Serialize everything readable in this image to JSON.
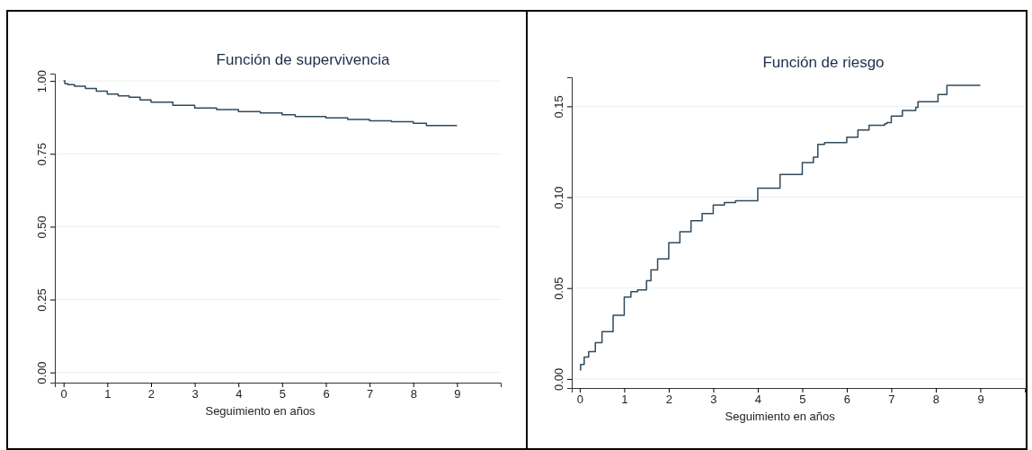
{
  "chart_data": [
    {
      "type": "step",
      "title": "Función de supervivencia",
      "xlabel": "Seguimiento en años",
      "xlim": [
        -0.2,
        10
      ],
      "xticks": [
        0,
        1,
        2,
        3,
        4,
        5,
        6,
        7,
        8,
        9
      ],
      "ylim": [
        -0.035,
        1.025
      ],
      "yticks": [
        {
          "value": 0,
          "label": "0.00"
        },
        {
          "value": 0.25,
          "label": "0.25"
        },
        {
          "value": 0.5,
          "label": "0.50"
        },
        {
          "value": 0.75,
          "label": "0.75"
        },
        {
          "value": 1,
          "label": "1.00"
        }
      ],
      "grid": "y",
      "series": [
        {
          "color": "#2f4a5c",
          "x": [
            0,
            0.03,
            0.1,
            0.25,
            0.5,
            0.75,
            1,
            1.25,
            1.5,
            1.75,
            2,
            2.5,
            3,
            3.5,
            4,
            4.5,
            5,
            5.3,
            6,
            6.5,
            7,
            7.5,
            8,
            8.3,
            9
          ],
          "values": [
            1.0,
            0.99,
            0.987,
            0.982,
            0.974,
            0.965,
            0.955,
            0.949,
            0.944,
            0.935,
            0.927,
            0.916,
            0.907,
            0.902,
            0.895,
            0.89,
            0.884,
            0.878,
            0.873,
            0.868,
            0.863,
            0.86,
            0.855,
            0.847,
            0.847
          ]
        }
      ]
    },
    {
      "type": "step",
      "title": "Función de riesgo",
      "xlabel": "Seguimiento en años",
      "xlim": [
        -0.18,
        10
      ],
      "xticks": [
        0,
        1,
        2,
        3,
        4,
        5,
        6,
        7,
        8,
        9
      ],
      "ylim": [
        -0.005,
        0.166
      ],
      "yticks": [
        {
          "value": 0,
          "label": "0.00"
        },
        {
          "value": 0.05,
          "label": "0.05"
        },
        {
          "value": 0.1,
          "label": "0.10"
        },
        {
          "value": 0.15,
          "label": "0.15"
        }
      ],
      "grid": "y",
      "series": [
        {
          "color": "#2f4a5c",
          "x": [
            0,
            0.02,
            0.1,
            0.2,
            0.35,
            0.5,
            0.75,
            1,
            1.15,
            1.3,
            1.5,
            1.6,
            1.75,
            2,
            2.25,
            2.5,
            2.75,
            3,
            3.25,
            3.5,
            4,
            4.5,
            5,
            5.25,
            5.35,
            5.5,
            6,
            6.25,
            6.5,
            6.85,
            6.9,
            7,
            7.25,
            7.55,
            7.6,
            8.05,
            8.25,
            9
          ],
          "values": [
            0.005,
            0.008,
            0.012,
            0.015,
            0.02,
            0.026,
            0.035,
            0.045,
            0.048,
            0.049,
            0.054,
            0.06,
            0.066,
            0.075,
            0.081,
            0.087,
            0.091,
            0.0957,
            0.097,
            0.098,
            0.105,
            0.1125,
            0.119,
            0.122,
            0.129,
            0.13,
            0.133,
            0.137,
            0.1395,
            0.1404,
            0.141,
            0.1446,
            0.1477,
            0.1495,
            0.1525,
            0.1565,
            0.1616,
            0.1616
          ]
        }
      ]
    }
  ]
}
